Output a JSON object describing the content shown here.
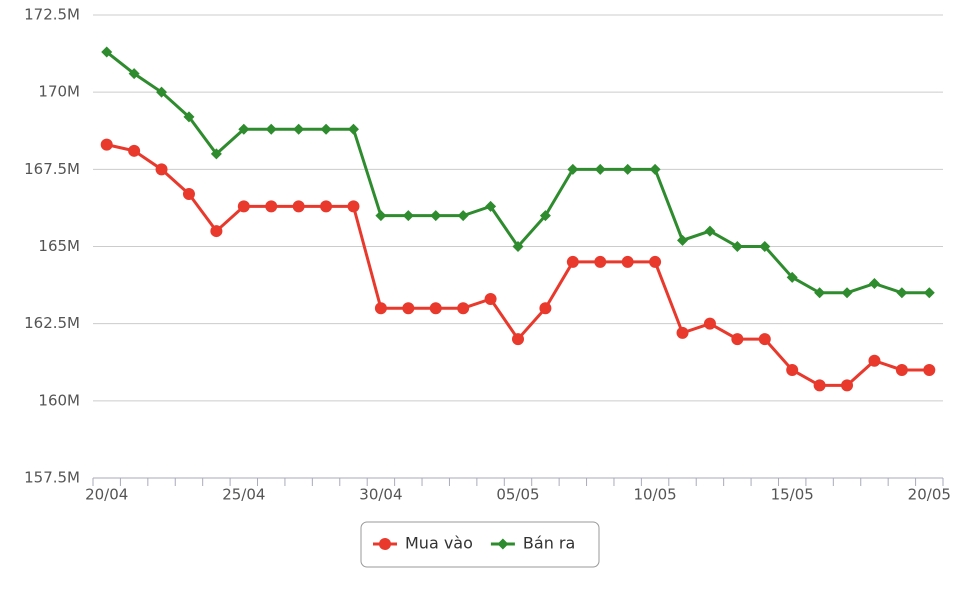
{
  "chart_data": {
    "type": "line",
    "categories": [
      "20/04",
      null,
      null,
      null,
      null,
      "25/04",
      null,
      null,
      null,
      null,
      "30/04",
      null,
      null,
      null,
      null,
      "05/05",
      null,
      null,
      null,
      null,
      "10/05",
      null,
      null,
      null,
      null,
      "15/05",
      null,
      null,
      null,
      null,
      "20/05"
    ],
    "series": [
      {
        "name": "Mua vào",
        "color": "#e8392c",
        "marker": "circle",
        "values": [
          168.3,
          168.1,
          167.5,
          166.7,
          165.5,
          166.3,
          166.3,
          166.3,
          166.3,
          166.3,
          163.0,
          163.0,
          163.0,
          163.0,
          163.3,
          162.0,
          163.0,
          164.5,
          164.5,
          164.5,
          164.5,
          162.2,
          162.5,
          162.0,
          162.0,
          161.0,
          160.5,
          160.5,
          161.3,
          161.0,
          161.0
        ]
      },
      {
        "name": "Bán ra",
        "color": "#2e8b2e",
        "marker": "diamond",
        "values": [
          171.3,
          170.6,
          170.0,
          169.2,
          168.0,
          168.8,
          168.8,
          168.8,
          168.8,
          168.8,
          166.0,
          166.0,
          166.0,
          166.0,
          166.3,
          165.0,
          166.0,
          167.5,
          167.5,
          167.5,
          167.5,
          165.2,
          165.5,
          165.0,
          165.0,
          164.0,
          163.5,
          163.5,
          163.8,
          163.5,
          163.5
        ]
      }
    ],
    "ylim": [
      157.5,
      172.5
    ],
    "yticks": [
      {
        "value": 157.5,
        "label": "157.5M"
      },
      {
        "value": 160,
        "label": "160M"
      },
      {
        "value": 162.5,
        "label": "162.5M"
      },
      {
        "value": 165,
        "label": "165M"
      },
      {
        "value": 167.5,
        "label": "167.5M"
      },
      {
        "value": 170,
        "label": "170M"
      },
      {
        "value": 172.5,
        "label": "172.5M"
      }
    ],
    "grid": true,
    "legend": "bottom"
  }
}
